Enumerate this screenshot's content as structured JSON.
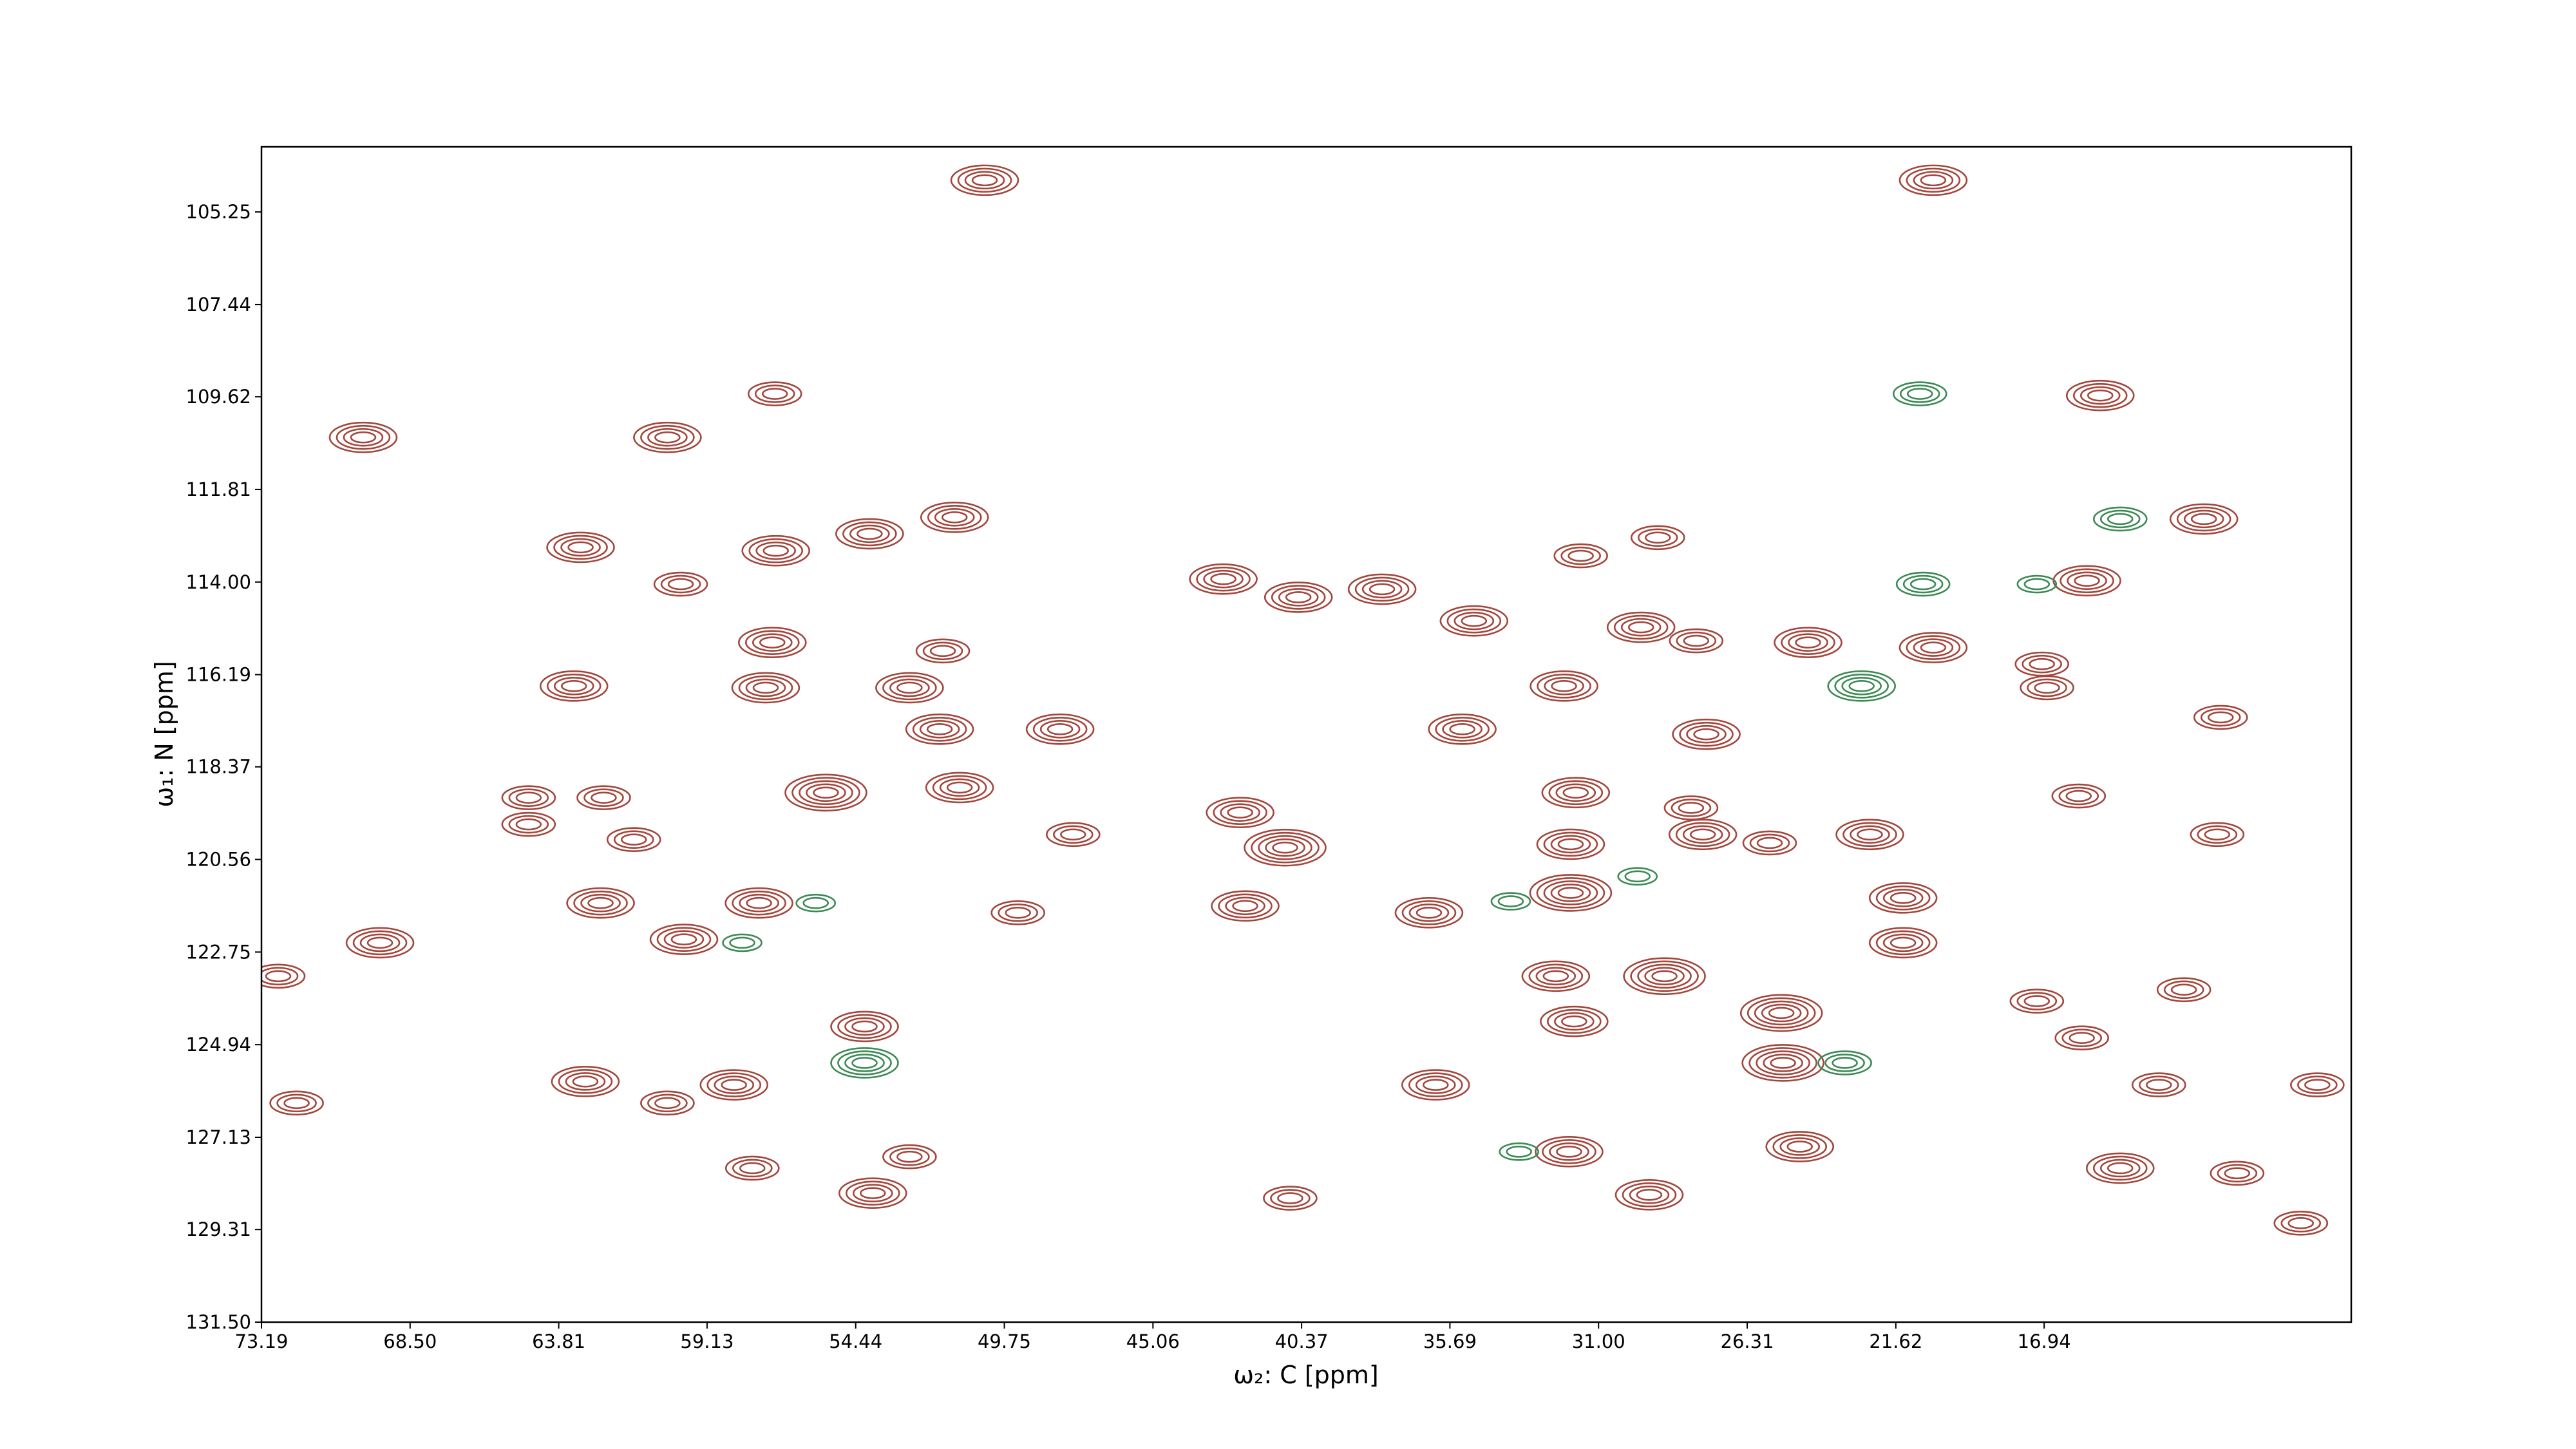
{
  "chart_data": {
    "type": "contour",
    "xlabel": "ω₂: C [ppm]",
    "ylabel": "ω₁: N [ppm]",
    "xlim": [
      73.19,
      7.25
    ],
    "ylim": [
      103.71,
      131.5
    ],
    "xticks": [
      73.19,
      {
        "value": 68.5,
        "label": "68.50"
      },
      63.81,
      59.13,
      54.44,
      49.75,
      45.06,
      40.37,
      35.69,
      {
        "value": 31,
        "label": "31.00"
      },
      26.31,
      21.62,
      16.94
    ],
    "yticks": [
      105.25,
      107.44,
      109.62,
      111.81,
      {
        "value": 114,
        "label": "114.00"
      },
      116.19,
      118.37,
      120.56,
      122.75,
      124.94,
      127.13,
      129.31,
      {
        "value": 131.5,
        "label": "131.50"
      }
    ],
    "series": [
      {
        "color": "#a3473d",
        "x": [
          50.37,
          20.44,
          69.98,
          60.38,
          56.99,
          15.17,
          11.9,
          15.59,
          63.12,
          56.96,
          51.32,
          54.0,
          59.96,
          42.84,
          40.47,
          37.83,
          31.56,
          29.13,
          34.93,
          29.66,
          27.92,
          24.39,
          20.44,
          17.01,
          16.85,
          63.33,
          57.28,
          57.07,
          51.69,
          52.74,
          51.79,
          47.99,
          11.37,
          35.3,
          32.09,
          27.6,
          31.72,
          28.08,
          64.76,
          64.76,
          62.39,
          61.44,
          55.38,
          51.16,
          47.58,
          42.31,
          40.89,
          31.88,
          31.88,
          27.71,
          25.6,
          22.44,
          15.85,
          11.48,
          62.49,
          57.49,
          49.32,
          42.15,
          36.35,
          21.39,
          69.45,
          72.66,
          59.86,
          32.35,
          28.92,
          21.39,
          17.17,
          12.53,
          54.16,
          31.77,
          25.23,
          25.18,
          15.75,
          62.97,
          58.28,
          36.14,
          13.32,
          8.32,
          72.08,
          60.38,
          31.93,
          24.65,
          57.7,
          52.74,
          29.4,
          14.54,
          10.85,
          8.84,
          40.73,
          53.9
        ],
        "y": [
          104.5,
          104.5,
          110.58,
          110.58,
          109.55,
          109.59,
          112.51,
          113.97,
          113.18,
          113.26,
          112.47,
          112.86,
          114.05,
          113.93,
          114.36,
          114.17,
          113.38,
          112.95,
          114.92,
          115.07,
          115.39,
          115.43,
          115.55,
          115.94,
          116.5,
          116.46,
          116.5,
          115.43,
          115.63,
          116.5,
          117.48,
          117.48,
          117.2,
          117.48,
          116.46,
          117.6,
          118.98,
          119.34,
          119.1,
          119.73,
          119.1,
          120.09,
          118.98,
          118.86,
          119.97,
          119.45,
          120.28,
          120.2,
          121.35,
          119.97,
          120.17,
          119.97,
          119.06,
          119.97,
          121.59,
          121.59,
          121.82,
          121.66,
          121.82,
          121.47,
          122.53,
          123.32,
          122.45,
          123.32,
          123.32,
          122.53,
          123.91,
          123.64,
          124.51,
          124.39,
          124.19,
          125.37,
          124.78,
          125.81,
          125.89,
          125.89,
          125.89,
          125.89,
          126.32,
          126.32,
          127.47,
          127.35,
          127.86,
          127.59,
          128.49,
          127.86,
          127.98,
          129.16,
          128.57,
          128.45
        ],
        "levels": [
          4,
          4,
          4,
          4,
          3,
          4,
          4,
          4,
          4,
          4,
          4,
          4,
          3,
          4,
          4,
          4,
          3,
          3,
          4,
          4,
          3,
          4,
          4,
          3,
          3,
          4,
          4,
          4,
          3,
          4,
          4,
          4,
          3,
          4,
          4,
          4,
          4,
          3,
          3,
          3,
          3,
          3,
          5,
          4,
          3,
          4,
          5,
          4,
          5,
          4,
          3,
          4,
          3,
          3,
          4,
          4,
          3,
          4,
          4,
          4,
          4,
          3,
          4,
          4,
          5,
          4,
          3,
          3,
          4,
          4,
          5,
          5,
          3,
          4,
          4,
          4,
          3,
          3,
          3,
          3,
          4,
          4,
          3,
          3,
          4,
          4,
          3,
          3,
          3,
          4
        ]
      },
      {
        "color": "#3d8a55",
        "x": [
          54.16,
          20.86,
          14.54,
          22.7,
          20.76,
          17.17,
          33.77,
          29.77,
          23.23,
          33.51,
          55.7,
          58.02
        ],
        "y": [
          125.37,
          109.55,
          112.51,
          116.46,
          114.05,
          114.05,
          121.55,
          120.96,
          125.37,
          127.47,
          121.59,
          122.53
        ],
        "levels": [
          4,
          3,
          3,
          4,
          3,
          2,
          2,
          2,
          3,
          2,
          2,
          2
        ]
      }
    ]
  }
}
